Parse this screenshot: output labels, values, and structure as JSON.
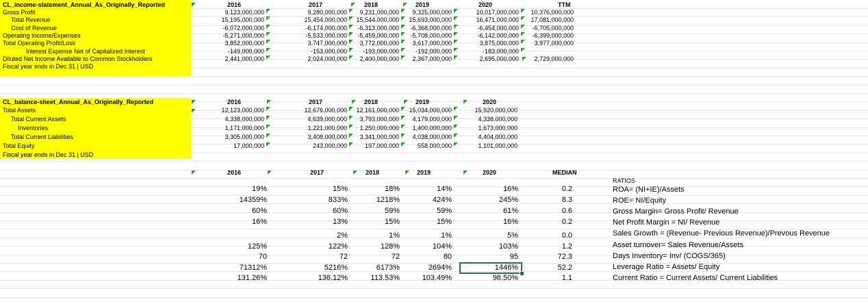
{
  "income_statement": {
    "title": "CL_income-statement_Annual_As_Originally_Reported",
    "columns": [
      "2016",
      "2017",
      "2018",
      "2019",
      "2020",
      "TTM"
    ],
    "rows": [
      {
        "label": "Gross Profit",
        "values": [
          "9,123,000,000",
          "9,280,000,000",
          "9,231,000,000",
          "9,325,000,000",
          "10,017,000,000",
          "10,376,000,000"
        ]
      },
      {
        "label": "Total Revenue",
        "values": [
          "15,195,000,000",
          "15,454,000,000",
          "15,544,000,000",
          "15,693,000,000",
          "16,471,000,000",
          "17,081,000,000"
        ]
      },
      {
        "label": "Cost of Revenue",
        "values": [
          "-6,072,000,000",
          "-6,174,000,000",
          "-6,313,000,000",
          "-6,368,000,000",
          "-6,454,000,000",
          "-6,705,000,000"
        ]
      },
      {
        "label": "Operating Income/Expenses",
        "values": [
          "-5,271,000,000",
          "-5,533,000,000",
          "-5,459,000,000",
          "-5,708,000,000",
          "-6,142,000,000",
          "-6,399,000,000"
        ]
      },
      {
        "label": "Total Operating Profit/Loss",
        "values": [
          "3,852,000,000",
          "3,747,000,000",
          "3,772,000,000",
          "3,617,000,000",
          "3,875,000,000",
          "3,977,000,000"
        ]
      },
      {
        "label": "Interest Expense Net of Capitalized Interest",
        "values": [
          "-149,000,000",
          "-153,000,000",
          "-193,000,000",
          "-192,000,000",
          "-183,000,000",
          ""
        ]
      },
      {
        "label": "Diluted Net Income Available to Common Stockholders",
        "values": [
          "2,441,000,000",
          "2,024,000,000",
          "2,400,000,000",
          "2,367,000,000",
          "2,695,000,000",
          "2,729,000,000"
        ]
      }
    ],
    "footer": "Fiscal year ends in Dec 31 | USD"
  },
  "balance_sheet": {
    "title": "CL_balance-sheet_Annual_As_Originally_Reported",
    "columns": [
      "2016",
      "2017",
      "2018",
      "2019",
      "2020"
    ],
    "rows": [
      {
        "label": "Total Assets",
        "values": [
          "12,123,000,000",
          "12,676,000,000",
          "12,161,000,000",
          "15,034,000,000",
          "15,920,000,000"
        ]
      },
      {
        "label": "Total Current Assets",
        "values": [
          "4,338,000,000",
          "4,639,000,000",
          "3,793,000,000",
          "4,179,000,000",
          "4,338,000,000"
        ]
      },
      {
        "label": "Inventories",
        "values": [
          "1,171,000,000",
          "1,221,000,000",
          "1,250,000,000",
          "1,400,000,000",
          "1,673,000,000"
        ]
      },
      {
        "label": "Total Current Liabilities",
        "values": [
          "3,305,000,000",
          "3,408,000,000",
          "3,341,000,000",
          "4,038,000,000",
          "4,404,000,000"
        ]
      },
      {
        "label": "Total Equity",
        "values": [
          "17,000,000",
          "243,000,000",
          "197,000,000",
          "558,000,000",
          "1,101,000,000"
        ]
      }
    ],
    "footer": "Fiscal year ends in Dec 31 | USD"
  },
  "ratios_table": {
    "columns": [
      "2016",
      "2017",
      "2018",
      "2019",
      "2020",
      "MEDIAN"
    ],
    "rows": [
      [
        "19%",
        "15%",
        "18%",
        "14%",
        "16%",
        "0.2"
      ],
      [
        "14359%",
        "833%",
        "1218%",
        "424%",
        "245%",
        "8.3"
      ],
      [
        "60%",
        "60%",
        "59%",
        "59%",
        "61%",
        "0.6"
      ],
      [
        "16%",
        "13%",
        "15%",
        "15%",
        "16%",
        "0.2"
      ],
      [
        "",
        "2%",
        "1%",
        "1%",
        "5%",
        "0.0"
      ],
      [
        "125%",
        "122%",
        "128%",
        "104%",
        "103%",
        "1.2"
      ],
      [
        "70",
        "72",
        "72",
        "80",
        "95",
        "72.3"
      ],
      [
        "71312%",
        "5216%",
        "6173%",
        "2694%",
        "1446%",
        "52.2"
      ],
      [
        "131.26%",
        "136.12%",
        "113.53%",
        "103.49%",
        "98.50%",
        "1.1"
      ]
    ],
    "selected_cell": "1446%"
  },
  "ratio_notes": {
    "title": "RATIOS",
    "items": [
      "ROA= (NI+IE)/Assets",
      "ROE= NI/Equity",
      "Gross Margin= Gross Profit/ Revenue",
      "Net Profit Margin = NI/ Revenue",
      "Sales Growth = (Revenue- Previous Revenue)/Prevous Revenue",
      "Asset turnover= Sales Revenue/Assets",
      "Days Inventory= Inv/ (COGS/365)",
      "Leverage Ratio = Assets/ Equity",
      "Current Ratio = Current Assets/ Current Liabilities"
    ]
  },
  "colors": {
    "highlight": "#ffff00",
    "flag": "#2ca02c",
    "selection": "#217346"
  }
}
